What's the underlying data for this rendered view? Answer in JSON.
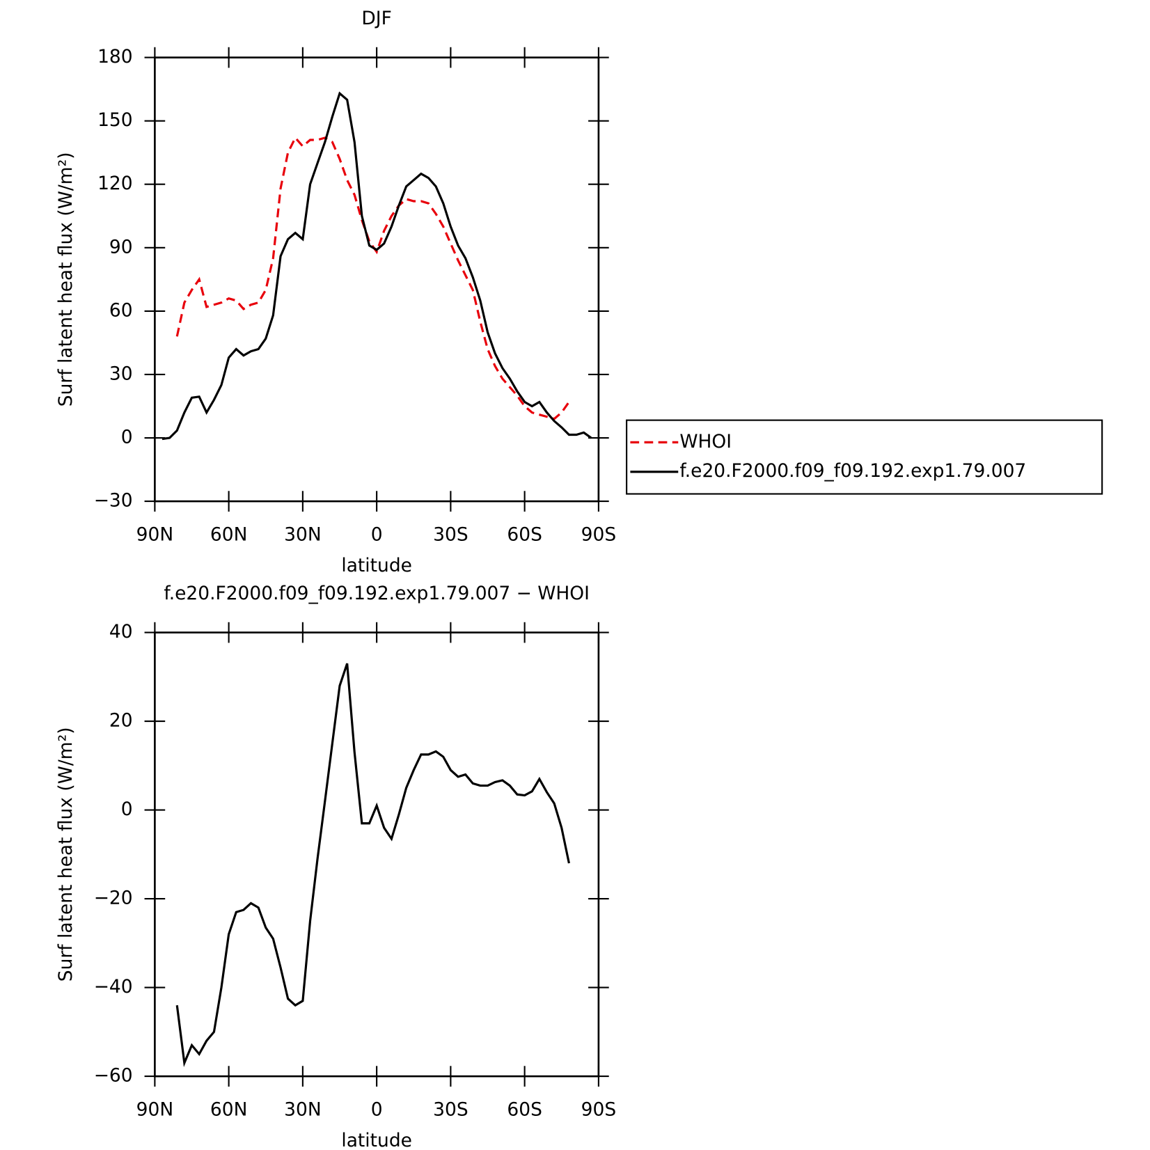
{
  "chart_data": [
    {
      "type": "line",
      "title": "DJF",
      "x_label": "latitude",
      "y_label": "Surf latent heat flux (W/m²)",
      "x": [
        87,
        84,
        81,
        78,
        75,
        72,
        69,
        66,
        63,
        60,
        57,
        54,
        51,
        48,
        45,
        42,
        39,
        36,
        33,
        30,
        27,
        24,
        21,
        18,
        15,
        12,
        9,
        6,
        3,
        0,
        -3,
        -6,
        -9,
        -12,
        -15,
        -18,
        -21,
        -24,
        -27,
        -30,
        -33,
        -36,
        -39,
        -42,
        -45,
        -48,
        -51,
        -54,
        -57,
        -60,
        -63,
        -66,
        -69,
        -72,
        -75,
        -78,
        -81,
        -84,
        -87
      ],
      "series": [
        {
          "name": "WHOI",
          "color": "#e8000b",
          "line_style": "dashed",
          "values": [
            null,
            null,
            48,
            64,
            70,
            75,
            62,
            63,
            64,
            66,
            65,
            61,
            63,
            64,
            70,
            85,
            118,
            135,
            142,
            138,
            141,
            141,
            142,
            140,
            132,
            122,
            115,
            103,
            93,
            88,
            98,
            105,
            110,
            113,
            112,
            112,
            111,
            106,
            100,
            92,
            84,
            77,
            70,
            55,
            42,
            34,
            28,
            24,
            20,
            15,
            12,
            11,
            10,
            9,
            12,
            17,
            null,
            null,
            null
          ]
        },
        {
          "name": "f.e20.F2000.f09_f09.192.exp1.79.007",
          "color": "#000000",
          "line_style": "solid",
          "values": [
            -0.5,
            0,
            3.5,
            12,
            19,
            19.5,
            12,
            18,
            25,
            38,
            42,
            39,
            41,
            42,
            47,
            58,
            86,
            94,
            97,
            94,
            120,
            130,
            140,
            152,
            163,
            160,
            140,
            105,
            91,
            89,
            92,
            100,
            110,
            119,
            122,
            125,
            123,
            119,
            111,
            100,
            91,
            85,
            76,
            65,
            50,
            40,
            33,
            28,
            22,
            17,
            15,
            17,
            12,
            8,
            5,
            1.5,
            1.5,
            2.5,
            0
          ]
        }
      ],
      "xlim": [
        90,
        -90
      ],
      "xticks": [
        {
          "value": 90,
          "label": "90N"
        },
        {
          "value": 60,
          "label": "60N"
        },
        {
          "value": 30,
          "label": "30N"
        },
        0,
        {
          "value": -30,
          "label": "30S"
        },
        {
          "value": -60,
          "label": "60S"
        },
        {
          "value": -90,
          "label": "90S"
        }
      ],
      "ylim": [
        -30,
        180
      ],
      "yticks": [
        {
          "value": -30,
          "label": "−30"
        },
        0,
        30,
        60,
        90,
        120,
        150,
        180
      ]
    },
    {
      "type": "line",
      "title": "f.e20.F2000.f09_f09.192.exp1.79.007 − WHOI",
      "x_label": "latitude",
      "y_label": "Surf latent heat flux (W/m²)",
      "x": [
        87,
        84,
        81,
        78,
        75,
        72,
        69,
        66,
        63,
        60,
        57,
        54,
        51,
        48,
        45,
        42,
        39,
        36,
        33,
        30,
        27,
        24,
        21,
        18,
        15,
        12,
        9,
        6,
        3,
        0,
        -3,
        -6,
        -9,
        -12,
        -15,
        -18,
        -21,
        -24,
        -27,
        -30,
        -33,
        -36,
        -39,
        -42,
        -45,
        -48,
        -51,
        -54,
        -57,
        -60,
        -63,
        -66,
        -69,
        -72,
        -75,
        -78,
        -81,
        -84,
        -87
      ],
      "series": [
        {
          "color": "#000000",
          "line_style": "solid",
          "values": [
            null,
            null,
            -44,
            -57,
            -53,
            -55,
            -52,
            -50,
            -40,
            -28,
            -23,
            -22.5,
            -21,
            -22,
            -26.5,
            -29,
            -35.5,
            -42.5,
            -44,
            -43,
            -25,
            -11,
            2,
            15,
            28,
            33,
            13,
            -3,
            -3,
            1,
            -4,
            -6.5,
            -1,
            5,
            9,
            12.5,
            12.5,
            13.2,
            12,
            9,
            7.5,
            8,
            6,
            5.5,
            5.5,
            6.3,
            6.7,
            5.5,
            3.5,
            3.3,
            4.2,
            7,
            4,
            1.5,
            -4,
            -12,
            null,
            null,
            null
          ]
        }
      ],
      "xlim": [
        90,
        -90
      ],
      "xticks": [
        {
          "value": 90,
          "label": "90N"
        },
        {
          "value": 60,
          "label": "60N"
        },
        {
          "value": 30,
          "label": "30N"
        },
        0,
        {
          "value": -30,
          "label": "30S"
        },
        {
          "value": -60,
          "label": "60S"
        },
        {
          "value": -90,
          "label": "90S"
        }
      ],
      "ylim": [
        -60,
        40
      ],
      "yticks": [
        {
          "value": -60,
          "label": "−60"
        },
        {
          "value": -40,
          "label": "−40"
        },
        {
          "value": -20,
          "label": "−20"
        },
        0,
        20,
        40
      ]
    }
  ]
}
